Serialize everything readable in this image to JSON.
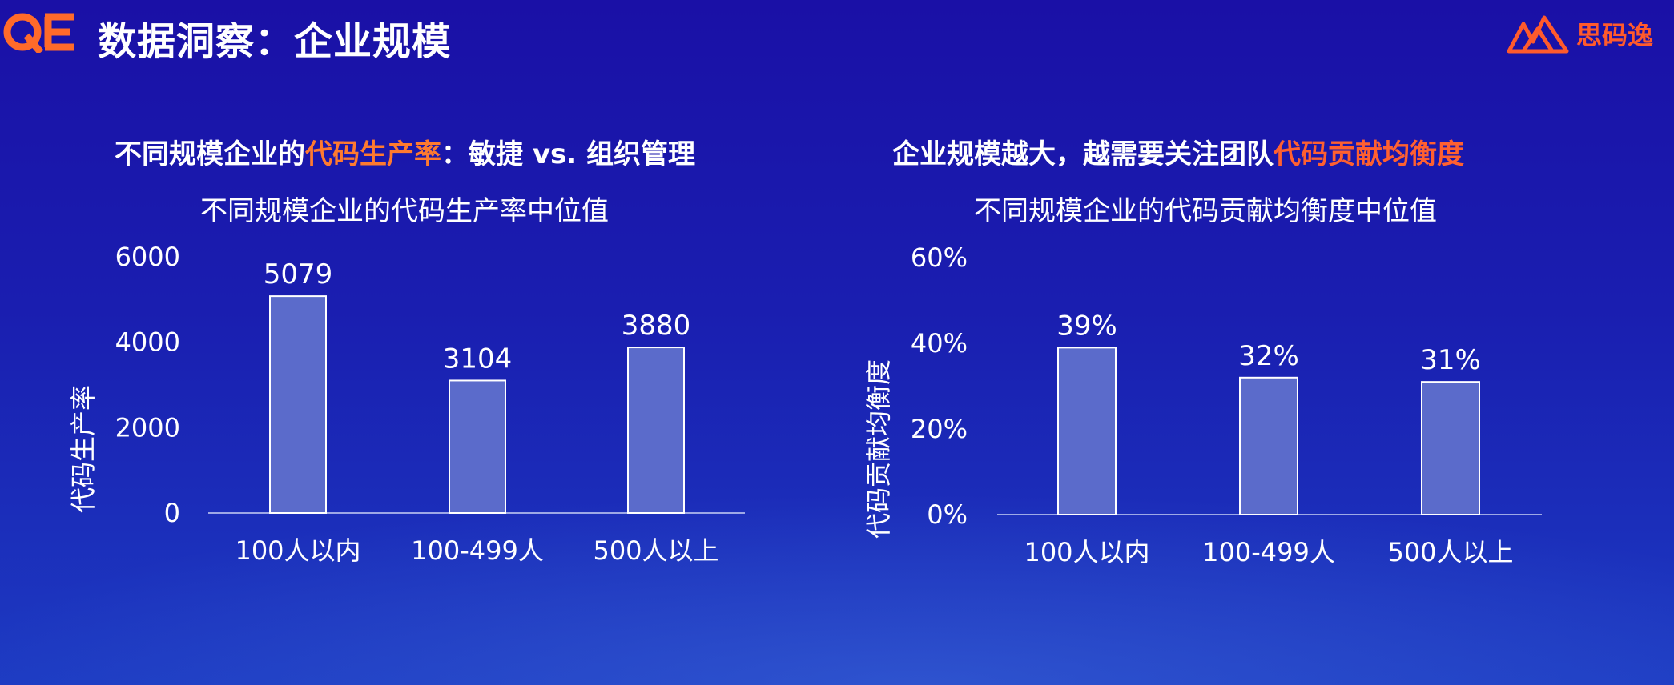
{
  "header": {
    "logo_text": "QE",
    "title": "数据洞察：企业规模",
    "brand_name": "思码逸",
    "accent": "#ff5a2c"
  },
  "panels": {
    "left": {
      "heading_pre": "不同规模企业的",
      "heading_highlight": "代码生产率",
      "heading_post": "：敏捷 vs. 组织管理"
    },
    "right": {
      "heading_pre": "企业规模越大，越需要关注团队",
      "heading_highlight": "代码贡献均衡度",
      "heading_post": ""
    }
  },
  "chart_data": [
    {
      "type": "bar",
      "title": "不同规模企业的代码生产率中位值",
      "ylabel": "代码生产率",
      "xlabel": "",
      "categories": [
        "100人以内",
        "100-499人",
        "500人以上"
      ],
      "values": [
        5079,
        3104,
        3880
      ],
      "value_labels": [
        "5079",
        "3104",
        "3880"
      ],
      "ylim": [
        0,
        6000
      ],
      "yticks": [
        0,
        2000,
        4000,
        6000
      ],
      "ytick_labels": [
        "0",
        "2000",
        "4000",
        "6000"
      ],
      "grid": false,
      "bar_color": "#5b6bcb"
    },
    {
      "type": "bar",
      "title": "不同规模企业的代码贡献均衡度中位值",
      "ylabel": "代码贡献均衡度",
      "xlabel": "",
      "categories": [
        "100人以内",
        "100-499人",
        "500人以上"
      ],
      "values": [
        39,
        32,
        31
      ],
      "value_labels": [
        "39%",
        "32%",
        "31%"
      ],
      "ylim": [
        0,
        60
      ],
      "yticks": [
        0,
        20,
        40,
        60
      ],
      "ytick_labels": [
        "0%",
        "20%",
        "40%",
        "60%"
      ],
      "grid": false,
      "bar_color": "#5b6bcb"
    }
  ]
}
